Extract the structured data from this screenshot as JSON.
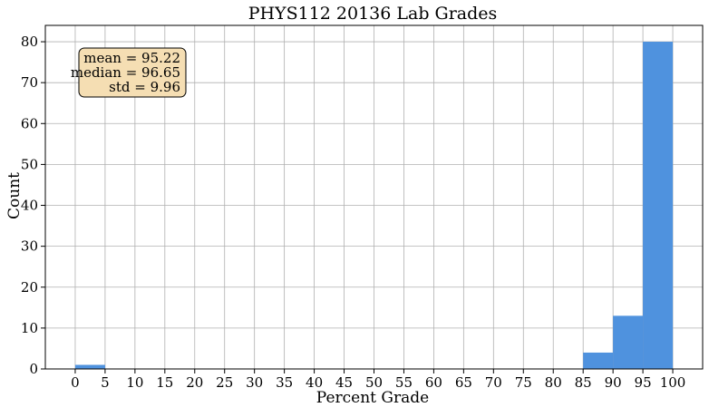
{
  "chart_data": {
    "type": "bar",
    "title": "PHYS112 20136 Lab Grades",
    "xlabel": "Percent Grade",
    "ylabel": "Count",
    "bin_edges": [
      0,
      5,
      85,
      90,
      95,
      100
    ],
    "bins": [
      {
        "x0": 0,
        "x1": 5,
        "count": 1
      },
      {
        "x0": 85,
        "x1": 90,
        "count": 4
      },
      {
        "x0": 90,
        "x1": 95,
        "count": 13
      },
      {
        "x0": 95,
        "x1": 100,
        "count": 80
      }
    ],
    "x_ticks": [
      0,
      5,
      10,
      15,
      20,
      25,
      30,
      35,
      40,
      45,
      50,
      55,
      60,
      65,
      70,
      75,
      80,
      85,
      90,
      95,
      100
    ],
    "y_ticks": [
      0,
      10,
      20,
      30,
      40,
      50,
      60,
      70,
      80
    ],
    "xlim": [
      -5,
      105
    ],
    "ylim": [
      0,
      84
    ],
    "grid": true,
    "bar_color": "#4f92de",
    "stats_box": {
      "lines": [
        "mean = 95.22",
        "median = 96.65",
        "std = 9.96"
      ],
      "background": "#f5deb3",
      "placement": "top-left"
    }
  }
}
